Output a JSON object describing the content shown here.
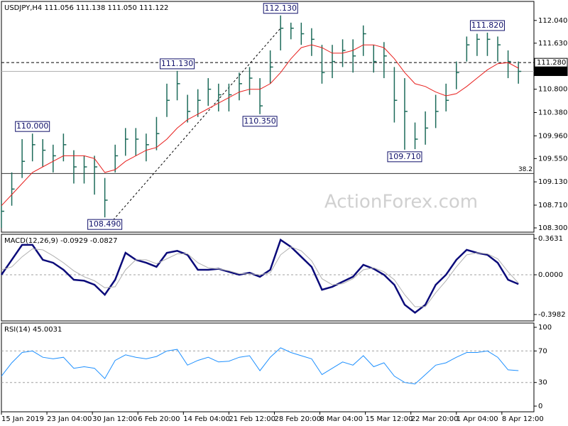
{
  "chart_data": [
    {
      "type": "ohlc",
      "title": "USDJPY,H4  111.056 111.138 111.050 111.122",
      "color": "#1d6b5a",
      "x": [
        0,
        10,
        20,
        30,
        40,
        50,
        60,
        70,
        80,
        90,
        100,
        110,
        120,
        130,
        140,
        150,
        160,
        170,
        180,
        190,
        200,
        210,
        220,
        230,
        240,
        250,
        260,
        270,
        280,
        290,
        300,
        310,
        320,
        330,
        340,
        350,
        360,
        370,
        380,
        390,
        400,
        410,
        420,
        430,
        440,
        450,
        460,
        470,
        480,
        490,
        500
      ],
      "high": [
        108.8,
        109.3,
        109.9,
        110.0,
        109.9,
        109.8,
        110.0,
        109.7,
        109.6,
        109.6,
        109.2,
        109.8,
        110.1,
        110.1,
        110.0,
        110.3,
        110.9,
        111.13,
        110.7,
        110.8,
        111.0,
        110.9,
        110.9,
        111.1,
        111.2,
        111.0,
        111.5,
        112.13,
        112.0,
        112.0,
        111.9,
        111.6,
        111.6,
        111.7,
        111.7,
        111.95,
        111.6,
        111.65,
        111.2,
        111.0,
        110.2,
        110.4,
        110.7,
        110.9,
        111.3,
        111.75,
        111.8,
        111.82,
        111.75,
        111.5,
        111.3
      ],
      "low": [
        108.3,
        108.7,
        109.2,
        109.5,
        109.4,
        109.3,
        109.5,
        109.1,
        109.1,
        108.9,
        108.49,
        109.3,
        109.6,
        109.6,
        109.5,
        109.7,
        110.3,
        110.6,
        110.2,
        110.3,
        110.5,
        110.4,
        110.4,
        110.6,
        110.7,
        110.35,
        110.9,
        111.5,
        111.7,
        111.6,
        111.4,
        110.9,
        111.0,
        111.2,
        111.1,
        111.4,
        111.1,
        111.0,
        110.2,
        109.71,
        109.72,
        109.8,
        110.1,
        110.4,
        110.8,
        111.3,
        111.4,
        111.4,
        111.3,
        111.0,
        110.9
      ],
      "close": [
        108.6,
        109.0,
        109.5,
        109.8,
        109.7,
        109.6,
        109.8,
        109.4,
        109.4,
        109.4,
        108.8,
        109.6,
        109.9,
        109.9,
        109.8,
        110.0,
        110.6,
        110.9,
        110.4,
        110.6,
        110.8,
        110.7,
        110.7,
        110.9,
        111.0,
        110.5,
        111.2,
        111.9,
        111.9,
        111.8,
        111.7,
        111.1,
        111.3,
        111.5,
        111.4,
        111.8,
        111.3,
        111.4,
        110.6,
        110.4,
        109.9,
        110.1,
        110.4,
        110.6,
        111.1,
        111.6,
        111.7,
        111.7,
        111.6,
        111.3,
        111.122
      ],
      "series": [
        {
          "color": "#e8201e",
          "values": [
            108.7,
            108.9,
            109.1,
            109.3,
            109.4,
            109.5,
            109.6,
            109.6,
            109.6,
            109.55,
            109.3,
            109.35,
            109.5,
            109.6,
            109.7,
            109.75,
            109.9,
            110.1,
            110.25,
            110.35,
            110.45,
            110.55,
            110.65,
            110.75,
            110.8,
            110.8,
            110.9,
            111.1,
            111.35,
            111.55,
            111.6,
            111.55,
            111.45,
            111.45,
            111.5,
            111.6,
            111.6,
            111.55,
            111.35,
            111.1,
            110.9,
            110.85,
            110.75,
            110.68,
            110.72,
            110.85,
            111.0,
            111.15,
            111.26,
            111.28,
            111.18
          ]
        }
      ],
      "xlim": [
        0,
        515
      ],
      "ylim": [
        108.223,
        112.383
      ],
      "yticks": [
        {
          "value": 112.04,
          "label": "112.040"
        },
        {
          "value": 111.63,
          "label": "111.630"
        },
        {
          "value": 110.8,
          "label": "110.800"
        },
        {
          "value": 110.38,
          "label": "110.380"
        },
        {
          "value": 109.96,
          "label": "109.960"
        },
        {
          "value": 109.55,
          "label": "109.550"
        },
        {
          "value": 109.13,
          "label": "109.130"
        },
        {
          "value": 108.71,
          "label": "108.710"
        },
        {
          "value": 108.3,
          "label": "108.300"
        }
      ],
      "hlines": [
        {
          "value": 111.28,
          "label": "111.280",
          "style": "dashed"
        },
        {
          "value": 111.122,
          "label": "111.122",
          "style": "current"
        },
        {
          "value": 109.28,
          "label": "38.2",
          "style": "solid"
        }
      ],
      "trendline": {
        "x": [
          100,
          270
        ],
        "y": [
          108.27,
          111.9
        ]
      },
      "annotations": [
        {
          "text": "110.000",
          "x": 30,
          "y": 110.0,
          "position": "above"
        },
        {
          "text": "108.490",
          "x": 100,
          "y": 108.49,
          "position": "below"
        },
        {
          "text": "111.130",
          "x": 170,
          "y": 111.13,
          "position": "above"
        },
        {
          "text": "110.350",
          "x": 250,
          "y": 110.35,
          "position": "below"
        },
        {
          "text": "112.130",
          "x": 270,
          "y": 112.13,
          "position": "above"
        },
        {
          "text": "109.710",
          "x": 390,
          "y": 109.71,
          "position": "below"
        },
        {
          "text": "111.820",
          "x": 470,
          "y": 111.82,
          "position": "above"
        }
      ],
      "watermark": "ActionForex.com"
    },
    {
      "type": "line",
      "title": "MACD(12,26,9) -0.0929 -0.0827",
      "x": [
        0,
        10,
        20,
        30,
        40,
        50,
        60,
        70,
        80,
        90,
        100,
        110,
        120,
        130,
        140,
        150,
        160,
        170,
        180,
        190,
        200,
        210,
        220,
        230,
        240,
        250,
        260,
        270,
        280,
        290,
        300,
        310,
        320,
        330,
        340,
        350,
        360,
        370,
        380,
        390,
        400,
        410,
        420,
        430,
        440,
        450,
        460,
        470,
        480,
        490,
        500
      ],
      "series": [
        {
          "color": "#0b0b7a",
          "values": [
            0.0,
            0.15,
            0.3,
            0.3,
            0.15,
            0.12,
            0.05,
            -0.05,
            -0.06,
            -0.1,
            -0.2,
            -0.05,
            0.22,
            0.15,
            0.12,
            0.08,
            0.22,
            0.24,
            0.2,
            0.05,
            0.05,
            0.06,
            0.03,
            0.0,
            0.02,
            -0.02,
            0.05,
            0.35,
            0.28,
            0.18,
            0.08,
            -0.15,
            -0.12,
            -0.07,
            -0.02,
            0.1,
            0.06,
            0.0,
            -0.1,
            -0.3,
            -0.38,
            -0.3,
            -0.1,
            0.0,
            0.15,
            0.25,
            0.22,
            0.2,
            0.12,
            -0.05,
            -0.0929
          ]
        },
        {
          "color": "#b0b0b0",
          "values": [
            0.05,
            0.08,
            0.18,
            0.26,
            0.25,
            0.19,
            0.12,
            0.04,
            -0.02,
            -0.06,
            -0.13,
            -0.12,
            0.05,
            0.15,
            0.15,
            0.11,
            0.16,
            0.21,
            0.21,
            0.12,
            0.07,
            0.06,
            0.04,
            0.01,
            0.01,
            0.0,
            0.02,
            0.2,
            0.28,
            0.24,
            0.14,
            -0.04,
            -0.1,
            -0.09,
            -0.04,
            0.05,
            0.07,
            0.03,
            -0.05,
            -0.2,
            -0.32,
            -0.32,
            -0.18,
            -0.06,
            0.08,
            0.2,
            0.22,
            0.21,
            0.16,
            0.03,
            -0.0827
          ]
        }
      ],
      "xlim": [
        0,
        515
      ],
      "ylim": [
        -0.4626,
        0.4057
      ],
      "yticks": [
        0.3631,
        {
          "value": 0,
          "label": "0.0000"
        },
        -0.3982
      ],
      "levels": [
        0
      ]
    },
    {
      "type": "line",
      "title": "RSI(14) 45.0031",
      "x": [
        0,
        10,
        20,
        30,
        40,
        50,
        60,
        70,
        80,
        90,
        100,
        110,
        120,
        130,
        140,
        150,
        160,
        170,
        180,
        190,
        200,
        210,
        220,
        230,
        240,
        250,
        260,
        270,
        280,
        290,
        300,
        310,
        320,
        330,
        340,
        350,
        360,
        370,
        380,
        390,
        400,
        410,
        420,
        430,
        440,
        450,
        460,
        470,
        480,
        490,
        500
      ],
      "series": [
        {
          "color": "#1e90ff",
          "values": [
            38,
            55,
            68,
            70,
            62,
            60,
            62,
            48,
            50,
            48,
            35,
            58,
            65,
            62,
            60,
            63,
            70,
            72,
            52,
            58,
            62,
            56,
            57,
            62,
            64,
            45,
            62,
            74,
            68,
            64,
            60,
            40,
            48,
            56,
            52,
            64,
            50,
            55,
            38,
            30,
            28,
            40,
            52,
            55,
            62,
            68,
            68,
            70,
            62,
            46,
            45.0031
          ]
        }
      ],
      "xlim": [
        0,
        515
      ],
      "ylim": [
        -7.2,
        105.4
      ],
      "yticks": [
        100,
        70,
        30,
        0
      ],
      "levels": [
        70,
        30
      ],
      "xticks": [
        {
          "value": 0,
          "label": "15 Jan 2019"
        },
        {
          "value": 44,
          "label": "23 Jan 04:00"
        },
        {
          "value": 88,
          "label": "30 Jan 12:00"
        },
        {
          "value": 132,
          "label": "6 Feb 20:00"
        },
        {
          "value": 176,
          "label": "14 Feb 04:00"
        },
        {
          "value": 220,
          "label": "21 Feb 12:00"
        },
        {
          "value": 264,
          "label": "28 Feb 20:00"
        },
        {
          "value": 308,
          "label": "8 Mar 04:00"
        },
        {
          "value": 352,
          "label": "15 Mar 12:00"
        },
        {
          "value": 396,
          "label": "22 Mar 20:00"
        },
        {
          "value": 440,
          "label": "1 Apr 04:00"
        },
        {
          "value": 484,
          "label": "8 Apr 12:00"
        }
      ]
    }
  ]
}
